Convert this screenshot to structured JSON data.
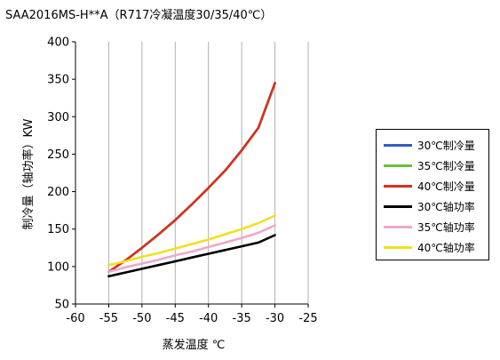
{
  "chart_data": {
    "type": "line",
    "title": "SAA2016MS-H**A（R717冷凝温度30/35/40℃）",
    "xlabel": "蒸发温度 ℃",
    "ylabel": "制冷量（轴功率）KW",
    "xlim": [
      -60,
      -25
    ],
    "ylim": [
      50,
      400
    ],
    "xticks": [
      -60,
      -55,
      -50,
      -45,
      -40,
      -35,
      -30,
      -25
    ],
    "yticks": [
      50,
      100,
      150,
      200,
      250,
      300,
      350,
      400
    ],
    "grid": "vertical",
    "legend_position": "right",
    "x": [
      -55,
      -52.5,
      -50,
      -47.5,
      -45,
      -42.5,
      -40,
      -37.5,
      -35,
      -32.5,
      -30
    ],
    "series": [
      {
        "name": "30℃制冷量",
        "color": "#2f5fbf",
        "values": [
          93,
          108,
          125,
          143,
          162,
          183,
          205,
          228,
          255,
          285,
          345
        ]
      },
      {
        "name": "35℃制冷量",
        "color": "#6cbf3b",
        "values": [
          93,
          108,
          125,
          143,
          162,
          183,
          205,
          228,
          255,
          285,
          345
        ]
      },
      {
        "name": "40℃制冷量",
        "color": "#d8301f",
        "values": [
          93,
          108,
          125,
          143,
          162,
          183,
          205,
          228,
          255,
          285,
          345
        ]
      },
      {
        "name": "30℃轴功率",
        "color": "#000000",
        "values": [
          87,
          92,
          97,
          102,
          107,
          112,
          117,
          122,
          127,
          132,
          142
        ]
      },
      {
        "name": "35℃轴功率",
        "color": "#f0a8c8",
        "values": [
          93,
          99,
          104,
          109,
          115,
          120,
          126,
          132,
          138,
          145,
          155
        ]
      },
      {
        "name": "40℃轴功率",
        "color": "#f0e020",
        "values": [
          102,
          107,
          113,
          118,
          124,
          130,
          136,
          143,
          150,
          158,
          168
        ]
      }
    ]
  }
}
